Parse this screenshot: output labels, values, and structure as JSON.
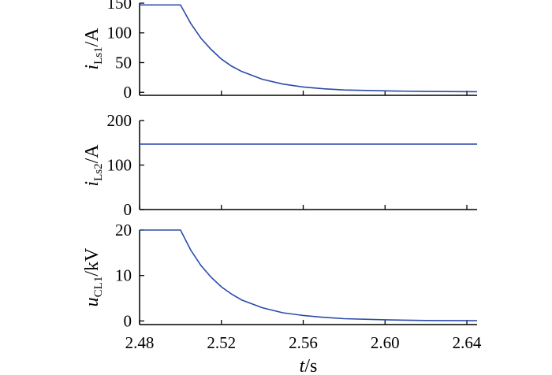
{
  "chart_data": [
    {
      "type": "line",
      "ylabel": {
        "var": "i",
        "sub": "Ls1",
        "unit": "/A"
      },
      "ylim": [
        -5,
        150
      ],
      "yticks": [
        0,
        50,
        100,
        150
      ],
      "xlim": [
        2.48,
        2.645
      ],
      "series": [
        {
          "color": "#2a4aa8",
          "x": [
            2.48,
            2.5,
            2.505,
            2.51,
            2.515,
            2.52,
            2.525,
            2.53,
            2.54,
            2.55,
            2.56,
            2.57,
            2.58,
            2.6,
            2.62,
            2.645
          ],
          "y": [
            147,
            147,
            116,
            91,
            72,
            56,
            44,
            35,
            22,
            14,
            9,
            6,
            4,
            2.5,
            1.5,
            1
          ]
        }
      ]
    },
    {
      "type": "line",
      "ylabel": {
        "var": "i",
        "sub": "Ls2",
        "unit": "/A"
      },
      "ylim": [
        0,
        200
      ],
      "yticks": [
        0,
        100,
        200
      ],
      "xlim": [
        2.48,
        2.645
      ],
      "series": [
        {
          "color": "#2a4aa8",
          "x": [
            2.48,
            2.645
          ],
          "y": [
            147,
            147
          ]
        }
      ]
    },
    {
      "type": "line",
      "ylabel": {
        "var": "u",
        "sub": "CL1",
        "unit": "/kV"
      },
      "ylim": [
        -0.8,
        20
      ],
      "yticks": [
        0,
        10,
        20
      ],
      "xlim": [
        2.48,
        2.645
      ],
      "xticks": [
        2.48,
        2.52,
        2.56,
        2.6,
        2.64
      ],
      "xticklabels": [
        "2.48",
        "2.52",
        "2.56",
        "2.60",
        "2.64"
      ],
      "xlabel": {
        "var": "t",
        "unit": "/s"
      },
      "series": [
        {
          "color": "#2a4aa8",
          "x": [
            2.48,
            2.5,
            2.505,
            2.51,
            2.515,
            2.52,
            2.525,
            2.53,
            2.54,
            2.55,
            2.56,
            2.57,
            2.58,
            2.6,
            2.62,
            2.645
          ],
          "y": [
            20,
            20,
            15.6,
            12.2,
            9.6,
            7.5,
            5.9,
            4.6,
            2.9,
            1.8,
            1.2,
            0.8,
            0.5,
            0.25,
            0.1,
            0.05
          ]
        }
      ]
    }
  ]
}
